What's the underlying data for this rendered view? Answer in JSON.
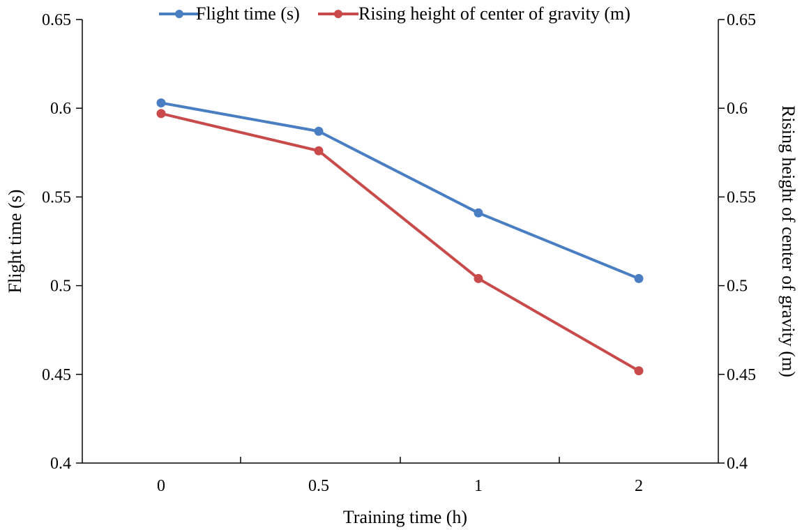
{
  "chart_data": {
    "type": "line",
    "title": "",
    "xlabel": "Training time (h)",
    "ylabel_left": "Flight time (s)",
    "ylabel_right": "Rising height of center of gravity (m)",
    "categories": [
      "0",
      "0.5",
      "1",
      "2"
    ],
    "ylim_left": [
      0.4,
      0.65
    ],
    "ylim_right": [
      0.4,
      0.65
    ],
    "yticks_left": [
      "0.4",
      "0.45",
      "0.5",
      "0.55",
      "0.6",
      "0.65"
    ],
    "yticks_right": [
      "0.4",
      "0.45",
      "0.5",
      "0.55",
      "0.6",
      "0.65"
    ],
    "ytick_values": [
      0.4,
      0.45,
      0.5,
      0.55,
      0.6,
      0.65
    ],
    "legend_position": "top-center",
    "grid": false,
    "series": [
      {
        "name": "Flight time (s)",
        "axis": "left",
        "color": "#4a7ec3",
        "values": [
          0.603,
          0.587,
          0.541,
          0.504
        ]
      },
      {
        "name": "Rising height of center of gravity (m)",
        "axis": "right",
        "color": "#c94a4a",
        "values": [
          0.597,
          0.576,
          0.504,
          0.452
        ]
      }
    ]
  }
}
